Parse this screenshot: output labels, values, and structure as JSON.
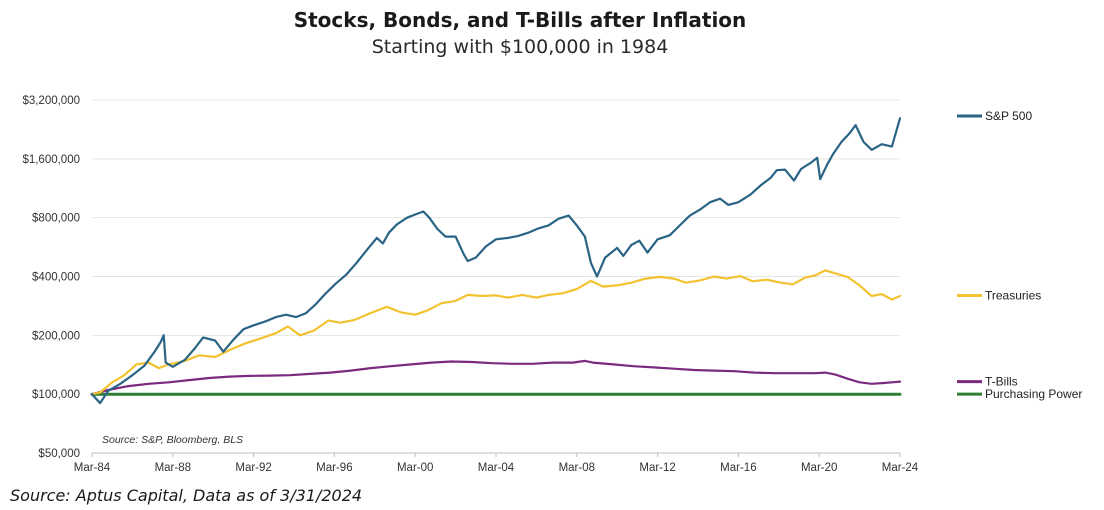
{
  "header": {
    "title": "Stocks, Bonds, and T-Bills after Inflation",
    "subtitle": "Starting with $100,000 in 1984"
  },
  "footer": {
    "source": "Source: Aptus Capital, Data as of 3/31/2024"
  },
  "chart_data": {
    "type": "line",
    "title": "Stocks, Bonds, and T-Bills after Inflation",
    "subtitle": "Starting with $100,000 in 1984",
    "note": "Source: S&P, Bloomberg, BLS",
    "y_scale": "log2",
    "ylim": [
      50000,
      3200000
    ],
    "y_ticks": [
      50000,
      100000,
      200000,
      400000,
      800000,
      1600000,
      3200000
    ],
    "y_tick_labels": [
      "$50,000",
      "$100,000",
      "$200,000",
      "$400,000",
      "$800,000",
      "$1,600,000",
      "$3,200,000"
    ],
    "xlim": [
      1984.2,
      2024.2
    ],
    "x_ticks": [
      1984.2,
      1988.2,
      1992.2,
      1996.2,
      2000.2,
      2004.2,
      2008.2,
      2012.2,
      2016.2,
      2020.2,
      2024.2
    ],
    "x_tick_labels": [
      "Mar-84",
      "Mar-88",
      "Mar-92",
      "Mar-96",
      "Mar-00",
      "Mar-04",
      "Mar-08",
      "Mar-12",
      "Mar-16",
      "Mar-20",
      "Mar-24"
    ],
    "grid": "horizontal",
    "legend_position": "right",
    "series": [
      {
        "name": "S&P 500",
        "color": "#2a6485",
        "points": [
          [
            1984.2,
            100000
          ],
          [
            1984.6,
            90000
          ],
          [
            1985.0,
            104000
          ],
          [
            1985.6,
            113000
          ],
          [
            1986.2,
            125000
          ],
          [
            1986.8,
            140000
          ],
          [
            1987.3,
            165000
          ],
          [
            1987.6,
            185000
          ],
          [
            1987.75,
            200000
          ],
          [
            1987.85,
            145000
          ],
          [
            1988.2,
            138000
          ],
          [
            1988.8,
            150000
          ],
          [
            1989.3,
            172000
          ],
          [
            1989.7,
            195000
          ],
          [
            1990.3,
            188000
          ],
          [
            1990.7,
            165000
          ],
          [
            1991.2,
            190000
          ],
          [
            1991.7,
            215000
          ],
          [
            1992.2,
            225000
          ],
          [
            1992.8,
            236000
          ],
          [
            1993.3,
            248000
          ],
          [
            1993.8,
            255000
          ],
          [
            1994.3,
            248000
          ],
          [
            1994.8,
            260000
          ],
          [
            1995.3,
            290000
          ],
          [
            1995.8,
            330000
          ],
          [
            1996.3,
            370000
          ],
          [
            1996.8,
            410000
          ],
          [
            1997.3,
            470000
          ],
          [
            1997.8,
            545000
          ],
          [
            1998.3,
            630000
          ],
          [
            1998.6,
            590000
          ],
          [
            1998.9,
            670000
          ],
          [
            1999.3,
            740000
          ],
          [
            1999.8,
            800000
          ],
          [
            2000.2,
            830000
          ],
          [
            2000.6,
            860000
          ],
          [
            2000.9,
            800000
          ],
          [
            2001.3,
            700000
          ],
          [
            2001.7,
            640000
          ],
          [
            2002.2,
            640000
          ],
          [
            2002.6,
            520000
          ],
          [
            2002.8,
            480000
          ],
          [
            2003.2,
            500000
          ],
          [
            2003.7,
            570000
          ],
          [
            2004.2,
            620000
          ],
          [
            2004.8,
            630000
          ],
          [
            2005.3,
            645000
          ],
          [
            2005.8,
            670000
          ],
          [
            2006.3,
            705000
          ],
          [
            2006.8,
            730000
          ],
          [
            2007.3,
            790000
          ],
          [
            2007.8,
            820000
          ],
          [
            2008.2,
            730000
          ],
          [
            2008.6,
            640000
          ],
          [
            2008.9,
            470000
          ],
          [
            2009.2,
            400000
          ],
          [
            2009.6,
            500000
          ],
          [
            2010.2,
            560000
          ],
          [
            2010.5,
            510000
          ],
          [
            2010.9,
            580000
          ],
          [
            2011.3,
            610000
          ],
          [
            2011.7,
            530000
          ],
          [
            2012.2,
            620000
          ],
          [
            2012.8,
            650000
          ],
          [
            2013.3,
            730000
          ],
          [
            2013.8,
            820000
          ],
          [
            2014.3,
            880000
          ],
          [
            2014.8,
            960000
          ],
          [
            2015.3,
            1000000
          ],
          [
            2015.7,
            930000
          ],
          [
            2016.2,
            960000
          ],
          [
            2016.8,
            1050000
          ],
          [
            2017.3,
            1170000
          ],
          [
            2017.8,
            1280000
          ],
          [
            2018.1,
            1400000
          ],
          [
            2018.5,
            1410000
          ],
          [
            2018.95,
            1240000
          ],
          [
            2019.3,
            1420000
          ],
          [
            2019.8,
            1530000
          ],
          [
            2020.1,
            1620000
          ],
          [
            2020.25,
            1260000
          ],
          [
            2020.6,
            1500000
          ],
          [
            2020.9,
            1700000
          ],
          [
            2021.3,
            1950000
          ],
          [
            2021.7,
            2160000
          ],
          [
            2022.0,
            2380000
          ],
          [
            2022.4,
            1950000
          ],
          [
            2022.8,
            1780000
          ],
          [
            2023.3,
            1900000
          ],
          [
            2023.8,
            1850000
          ],
          [
            2024.2,
            2580000
          ]
        ]
      },
      {
        "name": "Treasuries",
        "color": "#f2c230",
        "points": [
          [
            1984.2,
            100000
          ],
          [
            1984.6,
            102000
          ],
          [
            1985.2,
            115000
          ],
          [
            1985.8,
            125000
          ],
          [
            1986.4,
            142000
          ],
          [
            1987.0,
            145000
          ],
          [
            1987.5,
            136000
          ],
          [
            1988.0,
            142000
          ],
          [
            1988.8,
            148000
          ],
          [
            1989.5,
            158000
          ],
          [
            1990.3,
            155000
          ],
          [
            1991.0,
            168000
          ],
          [
            1991.8,
            182000
          ],
          [
            1992.5,
            192000
          ],
          [
            1993.3,
            205000
          ],
          [
            1993.9,
            222000
          ],
          [
            1994.5,
            200000
          ],
          [
            1995.2,
            212000
          ],
          [
            1995.9,
            238000
          ],
          [
            1996.5,
            232000
          ],
          [
            1997.2,
            240000
          ],
          [
            1997.8,
            255000
          ],
          [
            1998.4,
            270000
          ],
          [
            1998.8,
            280000
          ],
          [
            1999.5,
            262000
          ],
          [
            2000.2,
            255000
          ],
          [
            2000.8,
            268000
          ],
          [
            2001.5,
            292000
          ],
          [
            2002.2,
            300000
          ],
          [
            2002.8,
            322000
          ],
          [
            2003.5,
            318000
          ],
          [
            2004.2,
            320000
          ],
          [
            2004.8,
            312000
          ],
          [
            2005.5,
            322000
          ],
          [
            2006.2,
            312000
          ],
          [
            2006.8,
            322000
          ],
          [
            2007.5,
            328000
          ],
          [
            2008.2,
            345000
          ],
          [
            2008.9,
            380000
          ],
          [
            2009.5,
            355000
          ],
          [
            2010.2,
            360000
          ],
          [
            2010.9,
            372000
          ],
          [
            2011.6,
            390000
          ],
          [
            2012.3,
            398000
          ],
          [
            2013.0,
            390000
          ],
          [
            2013.6,
            372000
          ],
          [
            2014.3,
            382000
          ],
          [
            2015.0,
            400000
          ],
          [
            2015.6,
            390000
          ],
          [
            2016.3,
            402000
          ],
          [
            2016.9,
            378000
          ],
          [
            2017.6,
            385000
          ],
          [
            2018.3,
            372000
          ],
          [
            2018.9,
            365000
          ],
          [
            2019.5,
            395000
          ],
          [
            2020.0,
            405000
          ],
          [
            2020.5,
            430000
          ],
          [
            2021.0,
            415000
          ],
          [
            2021.6,
            398000
          ],
          [
            2022.2,
            360000
          ],
          [
            2022.8,
            318000
          ],
          [
            2023.3,
            325000
          ],
          [
            2023.8,
            305000
          ],
          [
            2024.2,
            318000
          ]
        ]
      },
      {
        "name": "T-Bills",
        "color": "#7b2a7e",
        "points": [
          [
            1984.2,
            100000
          ],
          [
            1985.0,
            105000
          ],
          [
            1986.0,
            110000
          ],
          [
            1987.0,
            113000
          ],
          [
            1988.0,
            115000
          ],
          [
            1989.0,
            118000
          ],
          [
            1990.0,
            121000
          ],
          [
            1991.0,
            123000
          ],
          [
            1992.0,
            124000
          ],
          [
            1993.0,
            124500
          ],
          [
            1994.0,
            125000
          ],
          [
            1995.0,
            127000
          ],
          [
            1996.0,
            129000
          ],
          [
            1997.0,
            132000
          ],
          [
            1998.0,
            136000
          ],
          [
            1999.0,
            139000
          ],
          [
            2000.0,
            142000
          ],
          [
            2001.0,
            145000
          ],
          [
            2002.0,
            147000
          ],
          [
            2003.0,
            146000
          ],
          [
            2004.0,
            144000
          ],
          [
            2005.0,
            143000
          ],
          [
            2006.0,
            143000
          ],
          [
            2007.0,
            145000
          ],
          [
            2008.0,
            145000
          ],
          [
            2008.6,
            148000
          ],
          [
            2009.0,
            145000
          ],
          [
            2010.0,
            142000
          ],
          [
            2011.0,
            139000
          ],
          [
            2012.0,
            137000
          ],
          [
            2013.0,
            135000
          ],
          [
            2014.0,
            133000
          ],
          [
            2015.0,
            132000
          ],
          [
            2016.0,
            131000
          ],
          [
            2017.0,
            129000
          ],
          [
            2018.0,
            128000
          ],
          [
            2019.0,
            128000
          ],
          [
            2020.0,
            128000
          ],
          [
            2020.5,
            129000
          ],
          [
            2021.0,
            126000
          ],
          [
            2021.6,
            120000
          ],
          [
            2022.2,
            115000
          ],
          [
            2022.8,
            113000
          ],
          [
            2023.4,
            114000
          ],
          [
            2024.2,
            116000
          ]
        ]
      },
      {
        "name": "Purchasing Power",
        "color": "#2e7d32",
        "points": [
          [
            1984.2,
            100000
          ],
          [
            2024.2,
            100000
          ]
        ]
      }
    ],
    "legend_anchor_values": {
      "S&P 500": 2650000,
      "Treasuries": 320000,
      "T-Bills": 116000,
      "Purchasing Power": 100000
    }
  }
}
